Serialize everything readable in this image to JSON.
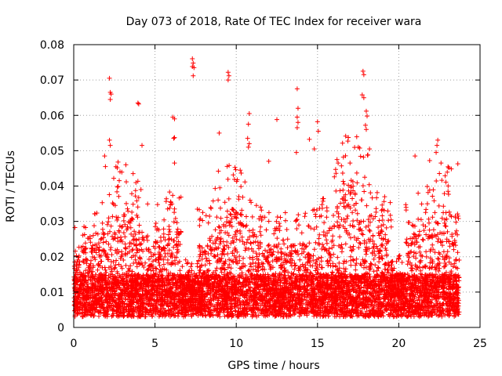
{
  "chart_data": {
    "type": "scatter",
    "title": "Day 073 of 2018, Rate Of TEC Index for receiver wara",
    "xlabel": "GPS time / hours",
    "ylabel": "ROTI / TECUs",
    "xlim": [
      0,
      25
    ],
    "ylim": [
      0,
      0.08
    ],
    "grid": true,
    "marker": "+",
    "color": "#ff0000",
    "x_ticks": [
      "0",
      "5",
      "10",
      "15",
      "20",
      "25"
    ],
    "y_ticks": [
      "0",
      "0.01",
      "0.02",
      "0.03",
      "0.04",
      "0.05",
      "0.06",
      "0.07",
      "0.08"
    ],
    "x_tick_values": [
      0,
      5,
      10,
      15,
      20,
      25
    ],
    "y_tick_values": [
      0,
      0.01,
      0.02,
      0.03,
      0.04,
      0.05,
      0.06,
      0.07,
      0.08
    ],
    "series": [
      {
        "name": "ROTI",
        "points": [
          [
            2.2,
            0.0705
          ],
          [
            2.25,
            0.0665
          ],
          [
            2.3,
            0.066
          ],
          [
            2.25,
            0.0645
          ],
          [
            4.0,
            0.0632
          ],
          [
            3.95,
            0.0635
          ],
          [
            6.1,
            0.0595
          ],
          [
            6.2,
            0.059
          ],
          [
            6.2,
            0.0537
          ],
          [
            6.15,
            0.0535
          ],
          [
            7.3,
            0.076
          ],
          [
            7.35,
            0.0748
          ],
          [
            7.3,
            0.0738
          ],
          [
            7.4,
            0.0735
          ],
          [
            7.35,
            0.0712
          ],
          [
            9.5,
            0.0722
          ],
          [
            9.55,
            0.0712
          ],
          [
            9.5,
            0.07
          ],
          [
            8.95,
            0.055
          ],
          [
            10.8,
            0.0605
          ],
          [
            10.75,
            0.0575
          ],
          [
            10.7,
            0.0535
          ],
          [
            10.8,
            0.052
          ],
          [
            10.75,
            0.051
          ],
          [
            12.5,
            0.0588
          ],
          [
            13.75,
            0.0675
          ],
          [
            13.8,
            0.062
          ],
          [
            13.75,
            0.0595
          ],
          [
            13.8,
            0.058
          ],
          [
            13.75,
            0.0565
          ],
          [
            15.0,
            0.0582
          ],
          [
            15.05,
            0.0555
          ],
          [
            17.8,
            0.0725
          ],
          [
            17.85,
            0.0715
          ],
          [
            17.75,
            0.0658
          ],
          [
            17.85,
            0.065
          ],
          [
            18.0,
            0.0612
          ],
          [
            18.05,
            0.0598
          ],
          [
            17.95,
            0.0572
          ],
          [
            18.0,
            0.056
          ],
          [
            22.4,
            0.053
          ],
          [
            22.35,
            0.0515
          ],
          [
            22.3,
            0.0495
          ],
          [
            1.9,
            0.0485
          ],
          [
            1.95,
            0.0455
          ],
          [
            2.2,
            0.053
          ],
          [
            2.25,
            0.0515
          ],
          [
            4.2,
            0.0515
          ],
          [
            6.2,
            0.0465
          ],
          [
            8.9,
            0.0442
          ],
          [
            12.0,
            0.047
          ],
          [
            13.7,
            0.0495
          ],
          [
            14.5,
            0.0532
          ],
          [
            14.8,
            0.0505
          ],
          [
            16.2,
            0.0475
          ],
          [
            17.0,
            0.0465
          ],
          [
            18.2,
            0.0505
          ],
          [
            18.1,
            0.0488
          ],
          [
            21.0,
            0.0485
          ],
          [
            21.9,
            0.0472
          ],
          [
            22.6,
            0.0465
          ]
        ]
      }
    ],
    "seed": 20180373
  }
}
